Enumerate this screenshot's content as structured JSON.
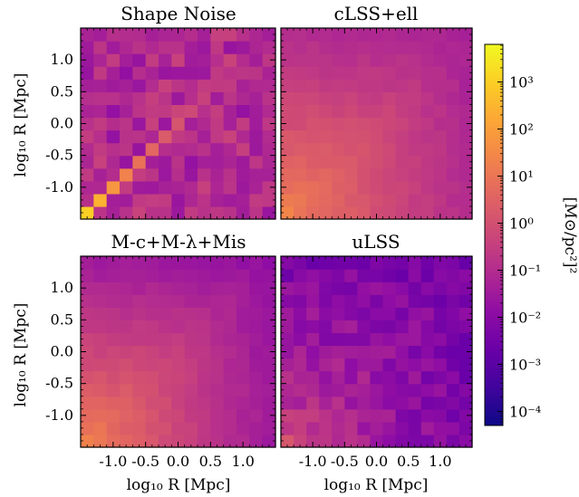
{
  "chart_data": {
    "type": "heatmap",
    "layout": "2x2 grid with shared vertical log color bar on the right",
    "tick_values": [
      -1.0,
      -0.5,
      0.0,
      0.5,
      1.0
    ],
    "tick_labels": [
      "-1.0",
      "-0.5",
      "0.0",
      "0.5",
      "1.0"
    ],
    "xlabel": "log₁₀ R [Mpc]",
    "ylabel": "log₁₀ R [Mpc]",
    "axis_range": [
      -1.5,
      1.5
    ],
    "n_bins": 15,
    "colormap": "plasma",
    "panels": [
      {
        "title": "Shape Noise",
        "pattern": "diagonal",
        "diag_log10": [
          3.0,
          2.4,
          1.8,
          1.3,
          0.9,
          0.6,
          0.3,
          0.1,
          -0.2,
          -0.4,
          -0.6,
          -0.8,
          -1.0,
          -1.2,
          -1.4
        ],
        "off_diag_log10": -1.0
      },
      {
        "title": "cLSS+ell",
        "pattern": "smooth",
        "corner_log10": 1.3,
        "far_log10": -1.3
      },
      {
        "title": "M-c+M-λ+Mis",
        "pattern": "smooth",
        "corner_log10": 1.3,
        "far_log10": -1.8
      },
      {
        "title": "uLSS",
        "pattern": "noisy",
        "corner_log10": -0.2,
        "far_log10": -2.4
      }
    ],
    "colorbar": {
      "label": "[M⊙/pc²]²",
      "scale": "log",
      "range_log10": [
        -4.3,
        3.8
      ],
      "tick_labels": [
        "10⁻⁴",
        "10⁻³",
        "10⁻²",
        "10⁻¹",
        "10⁰",
        "10¹",
        "10²",
        "10³"
      ],
      "tick_exponents": [
        -4,
        -3,
        -2,
        -1,
        0,
        1,
        2,
        3
      ]
    }
  }
}
